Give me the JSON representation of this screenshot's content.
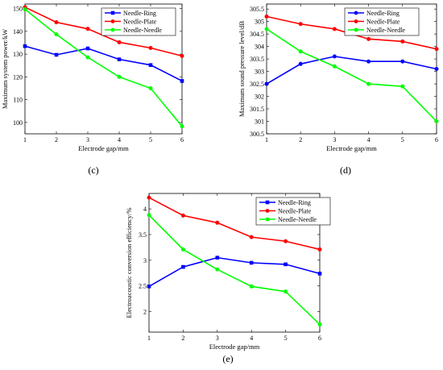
{
  "chart_data": [
    {
      "type": "line",
      "caption": "(c)",
      "xlabel": "Electrode gap/mm",
      "ylabel": "Maximum system power/kW",
      "x": [
        1,
        2,
        3,
        4,
        5,
        6
      ],
      "xlim": [
        1,
        6
      ],
      "ylim": [
        95,
        152
      ],
      "yticks": [
        100,
        110,
        120,
        130,
        140,
        150
      ],
      "xticks": [
        1,
        2,
        3,
        4,
        5,
        6
      ],
      "legend_position": "top-right",
      "grid": false,
      "series": [
        {
          "name": "Needle-Ring",
          "color": "#0000ff",
          "marker": "square",
          "values": [
            133.5,
            129.7,
            132.5,
            127.7,
            125.2,
            118.2
          ]
        },
        {
          "name": "Needle-Plate",
          "color": "#ff0000",
          "marker": "circle",
          "values": [
            150.6,
            144.0,
            141.1,
            135.2,
            132.7,
            129.2
          ]
        },
        {
          "name": "Needle-Needle",
          "color": "#00ff00",
          "marker": "circle",
          "values": [
            149.7,
            138.7,
            128.6,
            120.0,
            115.0,
            98.3
          ]
        }
      ]
    },
    {
      "type": "line",
      "caption": "(d)",
      "xlabel": "Electrode gap/mm",
      "ylabel": "Maximum sound pressure level/dB",
      "x": [
        1,
        2,
        3,
        4,
        5,
        6
      ],
      "xlim": [
        1,
        6
      ],
      "ylim": [
        300.5,
        305.7
      ],
      "yticks": [
        300.5,
        301,
        301.5,
        302,
        302.5,
        303,
        303.5,
        304,
        304.5,
        305,
        305.5
      ],
      "xticks": [
        1,
        2,
        3,
        4,
        5,
        6
      ],
      "legend_position": "top-right",
      "grid": false,
      "series": [
        {
          "name": "Needle-Ring",
          "color": "#0000ff",
          "marker": "circle",
          "values": [
            302.5,
            303.3,
            303.6,
            303.4,
            303.4,
            303.1
          ]
        },
        {
          "name": "Needle-Plate",
          "color": "#ff0000",
          "marker": "circle",
          "values": [
            305.2,
            304.9,
            304.7,
            304.3,
            304.2,
            303.9
          ]
        },
        {
          "name": "Needle-Needle",
          "color": "#00ff00",
          "marker": "circle",
          "values": [
            304.7,
            303.8,
            303.2,
            302.5,
            302.4,
            301.0
          ]
        }
      ]
    },
    {
      "type": "line",
      "caption": "(e)",
      "xlabel": "Electrode gap/mm",
      "ylabel": "Electroacoustic conversion efficiency/%",
      "x": [
        1,
        2,
        3,
        4,
        5,
        6
      ],
      "xlim": [
        1,
        6
      ],
      "ylim": [
        1.6,
        4.3
      ],
      "yticks": [
        2,
        2.5,
        3,
        3.5,
        4
      ],
      "xticks": [
        1,
        2,
        3,
        4,
        5,
        6
      ],
      "legend_position": "top-right",
      "grid": false,
      "series": [
        {
          "name": "Needle-Ring",
          "color": "#0000ff",
          "marker": "square",
          "values": [
            2.49,
            2.87,
            3.05,
            2.95,
            2.92,
            2.74
          ]
        },
        {
          "name": "Needle-Plate",
          "color": "#ff0000",
          "marker": "circle",
          "values": [
            4.22,
            3.87,
            3.73,
            3.45,
            3.37,
            3.21
          ]
        },
        {
          "name": "Needle-Needle",
          "color": "#00ff00",
          "marker": "circle",
          "values": [
            3.88,
            3.21,
            2.82,
            2.49,
            2.39,
            1.75
          ]
        }
      ]
    }
  ]
}
